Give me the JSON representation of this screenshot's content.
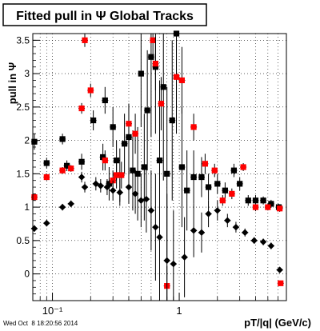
{
  "chart_data": {
    "type": "scatter",
    "title": "Fitted pull in Ψ   Global Tracks",
    "xlabel": "pT/|q| (GeV/c)",
    "ylabel": "pull in Ψ",
    "x_scale": "log",
    "xlim": [
      0.07,
      7
    ],
    "ylim": [
      -0.4,
      3.6
    ],
    "x_ticks": [
      {
        "v": 0.1,
        "label": "10⁻¹"
      },
      {
        "v": 1,
        "label": "1"
      }
    ],
    "y_ticks": [
      "0",
      "0.5",
      "1",
      "1.5",
      "2",
      "2.5",
      "3",
      "3.5"
    ],
    "grid": true,
    "series": [
      {
        "marker": "square",
        "color": "#000000",
        "points": [
          [
            0.072,
            1.98,
            0.12
          ],
          [
            0.09,
            1.66,
            0.08
          ],
          [
            0.12,
            2.02,
            0.08
          ],
          [
            0.13,
            1.62,
            0.08
          ],
          [
            0.17,
            1.68,
            0.12
          ],
          [
            0.21,
            2.3,
            0.15
          ],
          [
            0.25,
            1.75,
            0.2
          ],
          [
            0.26,
            2.6,
            0.2
          ],
          [
            0.28,
            1.35,
            0.25
          ],
          [
            0.3,
            2.2,
            0.3
          ],
          [
            0.32,
            1.7,
            0.3
          ],
          [
            0.34,
            1.48,
            0.4
          ],
          [
            0.37,
            1.95,
            0.45
          ],
          [
            0.4,
            2.05,
            0.5
          ],
          [
            0.43,
            1.55,
            0.6
          ],
          [
            0.47,
            1.5,
            0.7
          ],
          [
            0.5,
            3.0,
            0.8
          ],
          [
            0.53,
            1.6,
            0.8
          ],
          [
            0.56,
            2.45,
            0.9
          ],
          [
            0.6,
            3.25,
            1.2
          ],
          [
            0.65,
            3.1,
            1.0
          ],
          [
            0.7,
            1.7,
            1.2
          ],
          [
            0.75,
            2.8,
            1.4
          ],
          [
            0.8,
            1.5,
            1.3
          ],
          [
            0.88,
            2.3,
            1.2
          ],
          [
            0.95,
            3.6,
            1.5
          ],
          [
            1.05,
            1.6,
            0.9
          ],
          [
            1.15,
            1.25,
            0.6
          ],
          [
            1.3,
            1.45,
            0.4
          ],
          [
            1.5,
            1.45,
            0.3
          ],
          [
            1.7,
            1.3,
            0.2
          ],
          [
            2.0,
            1.35,
            0.15
          ],
          [
            2.3,
            1.25,
            0.12
          ],
          [
            2.7,
            1.55,
            0.1
          ],
          [
            3.0,
            1.35,
            0.1
          ],
          [
            3.5,
            1.1,
            0.08
          ],
          [
            4.0,
            1.1,
            0.08
          ],
          [
            4.6,
            1.1,
            0.06
          ],
          [
            5.3,
            1.05,
            0.06
          ],
          [
            6.1,
            1.0,
            0.05
          ]
        ]
      },
      {
        "marker": "square",
        "color": "#ff0000",
        "points": [
          [
            0.072,
            1.15,
            0.05
          ],
          [
            0.09,
            1.45,
            0.05
          ],
          [
            0.12,
            1.55,
            0.05
          ],
          [
            0.14,
            1.58,
            0.05
          ],
          [
            0.17,
            2.48,
            0.08
          ],
          [
            0.18,
            3.5,
            0.1
          ],
          [
            0.2,
            2.75,
            0.1
          ],
          [
            0.26,
            1.7,
            0.15
          ],
          [
            0.3,
            1.4,
            0.15
          ],
          [
            0.32,
            1.48,
            0.2
          ],
          [
            0.35,
            1.48,
            0.2
          ],
          [
            0.4,
            2.25,
            0.3
          ],
          [
            0.45,
            2.1,
            0.3
          ],
          [
            0.62,
            3.5,
            0.3
          ],
          [
            0.65,
            3.15,
            0.4
          ],
          [
            0.72,
            2.55,
            0.4
          ],
          [
            0.95,
            2.95,
            0.5
          ],
          [
            1.05,
            2.9,
            0.5
          ],
          [
            0.8,
            -0.18,
            0.3
          ],
          [
            1.3,
            2.2,
            0.2
          ],
          [
            1.6,
            1.65,
            0.15
          ],
          [
            1.9,
            1.55,
            0.1
          ],
          [
            2.2,
            1.1,
            0.08
          ],
          [
            2.6,
            1.2,
            0.08
          ],
          [
            3.2,
            1.6,
            0.06
          ],
          [
            4.0,
            1.0,
            0.06
          ],
          [
            5.0,
            1.0,
            0.05
          ],
          [
            6.2,
            0.98,
            0.05
          ],
          [
            6.3,
            -0.14,
            0.03
          ]
        ]
      },
      {
        "marker": "diamond",
        "color": "#000000",
        "points": [
          [
            0.072,
            0.68,
            0.05
          ],
          [
            0.09,
            0.76,
            0.05
          ],
          [
            0.12,
            1.0,
            0.05
          ],
          [
            0.14,
            1.05,
            0.05
          ],
          [
            0.17,
            1.45,
            0.08
          ],
          [
            0.18,
            1.3,
            0.08
          ],
          [
            0.22,
            1.35,
            0.1
          ],
          [
            0.24,
            1.32,
            0.1
          ],
          [
            0.27,
            1.3,
            0.12
          ],
          [
            0.3,
            1.25,
            0.15
          ],
          [
            0.34,
            1.22,
            0.2
          ],
          [
            0.4,
            1.3,
            0.25
          ],
          [
            0.45,
            1.2,
            0.3
          ],
          [
            0.5,
            1.1,
            0.4
          ],
          [
            0.55,
            1.12,
            0.5
          ],
          [
            0.6,
            0.95,
            0.6
          ],
          [
            0.65,
            0.7,
            0.8
          ],
          [
            0.7,
            0.55,
            1.0
          ],
          [
            0.8,
            0.2,
            1.0
          ],
          [
            0.9,
            0.15,
            0.8
          ],
          [
            1.1,
            0.25,
            0.6
          ],
          [
            1.3,
            0.65,
            0.4
          ],
          [
            1.5,
            0.62,
            0.3
          ],
          [
            1.7,
            0.9,
            0.2
          ],
          [
            2.0,
            0.95,
            0.15
          ],
          [
            2.4,
            0.8,
            0.1
          ],
          [
            2.8,
            0.7,
            0.08
          ],
          [
            3.3,
            0.62,
            0.06
          ],
          [
            3.9,
            0.5,
            0.05
          ],
          [
            4.6,
            0.48,
            0.05
          ],
          [
            5.3,
            0.42,
            0.05
          ],
          [
            6.2,
            0.06,
            0.04
          ]
        ]
      }
    ]
  },
  "footer": {
    "timestamp": "Wed Oct  8 18:20:56 2014"
  }
}
